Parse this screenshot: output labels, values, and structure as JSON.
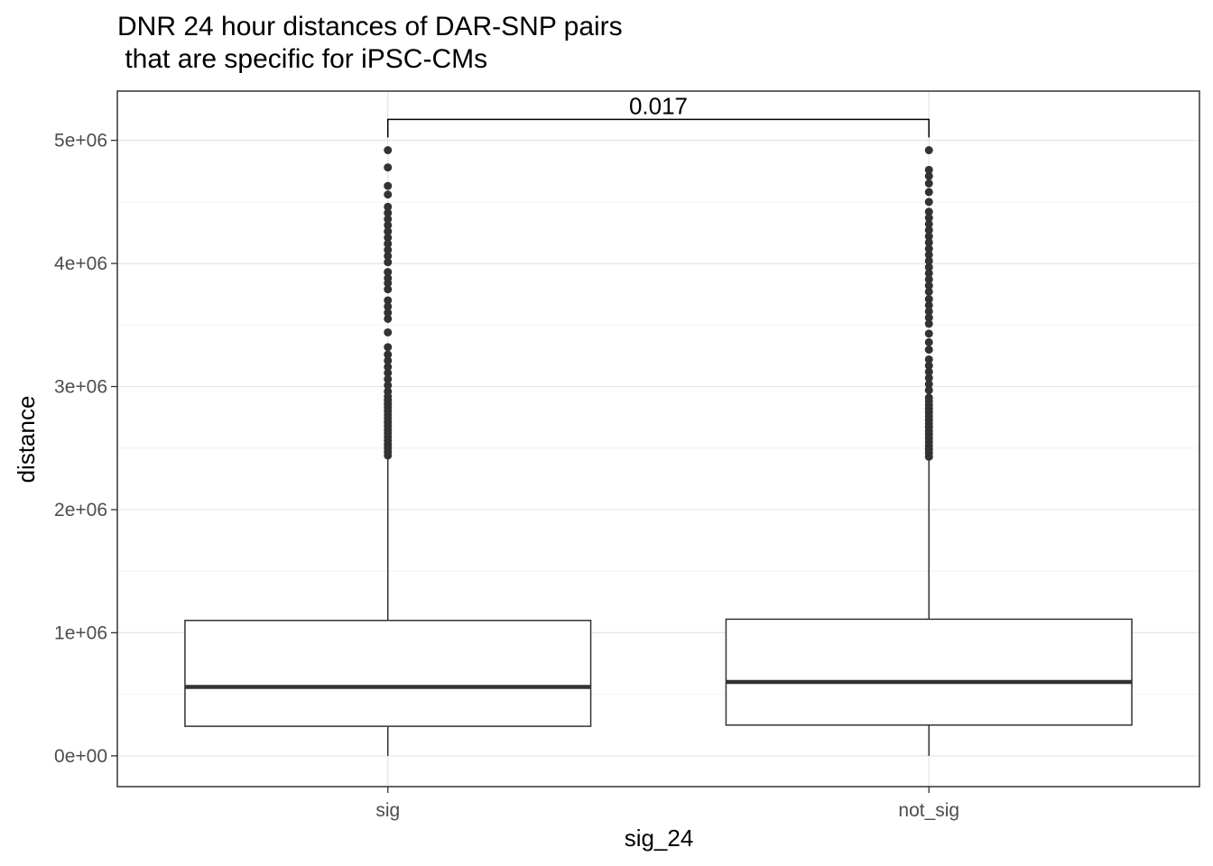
{
  "chart_data": {
    "type": "box",
    "title_line1": "DNR 24 hour distances of DAR-SNP pairs",
    "title_line2": " that are specific for iPSC-CMs",
    "xlabel": "sig_24",
    "ylabel": "distance",
    "categories": [
      "sig",
      "not_sig"
    ],
    "ylim": [
      -250000,
      5400000
    ],
    "y_ticks": [
      0,
      1000000,
      2000000,
      3000000,
      4000000,
      5000000
    ],
    "y_tick_labels": [
      "0e+00",
      "1e+06",
      "2e+06",
      "3e+06",
      "4e+06",
      "5e+06"
    ],
    "grid": true,
    "boxes": [
      {
        "name": "sig",
        "min": 0,
        "q1": 240000,
        "median": 560000,
        "q3": 1100000,
        "whisker_high": 2420000,
        "outliers": [
          2440000,
          2470000,
          2500000,
          2530000,
          2560000,
          2590000,
          2620000,
          2650000,
          2680000,
          2710000,
          2740000,
          2770000,
          2800000,
          2830000,
          2860000,
          2890000,
          2920000,
          2960000,
          3010000,
          3060000,
          3110000,
          3160000,
          3210000,
          3260000,
          3320000,
          3440000,
          3550000,
          3600000,
          3650000,
          3700000,
          3790000,
          3840000,
          3880000,
          3930000,
          4010000,
          4060000,
          4110000,
          4160000,
          4210000,
          4260000,
          4310000,
          4360000,
          4410000,
          4460000,
          4560000,
          4630000,
          4780000,
          4920000
        ]
      },
      {
        "name": "not_sig",
        "min": 0,
        "q1": 250000,
        "median": 600000,
        "q3": 1110000,
        "whisker_high": 2410000,
        "outliers": [
          2430000,
          2460000,
          2490000,
          2520000,
          2550000,
          2580000,
          2610000,
          2640000,
          2670000,
          2700000,
          2730000,
          2760000,
          2790000,
          2820000,
          2850000,
          2880000,
          2910000,
          2970000,
          3020000,
          3070000,
          3120000,
          3170000,
          3220000,
          3300000,
          3360000,
          3430000,
          3510000,
          3560000,
          3610000,
          3660000,
          3710000,
          3770000,
          3820000,
          3870000,
          3920000,
          3970000,
          4020000,
          4070000,
          4120000,
          4170000,
          4220000,
          4270000,
          4320000,
          4370000,
          4420000,
          4500000,
          4580000,
          4650000,
          4710000,
          4760000,
          4920000
        ]
      }
    ],
    "annotation": {
      "label": "0.017",
      "y": 5170000,
      "from": "sig",
      "to": "not_sig"
    }
  }
}
